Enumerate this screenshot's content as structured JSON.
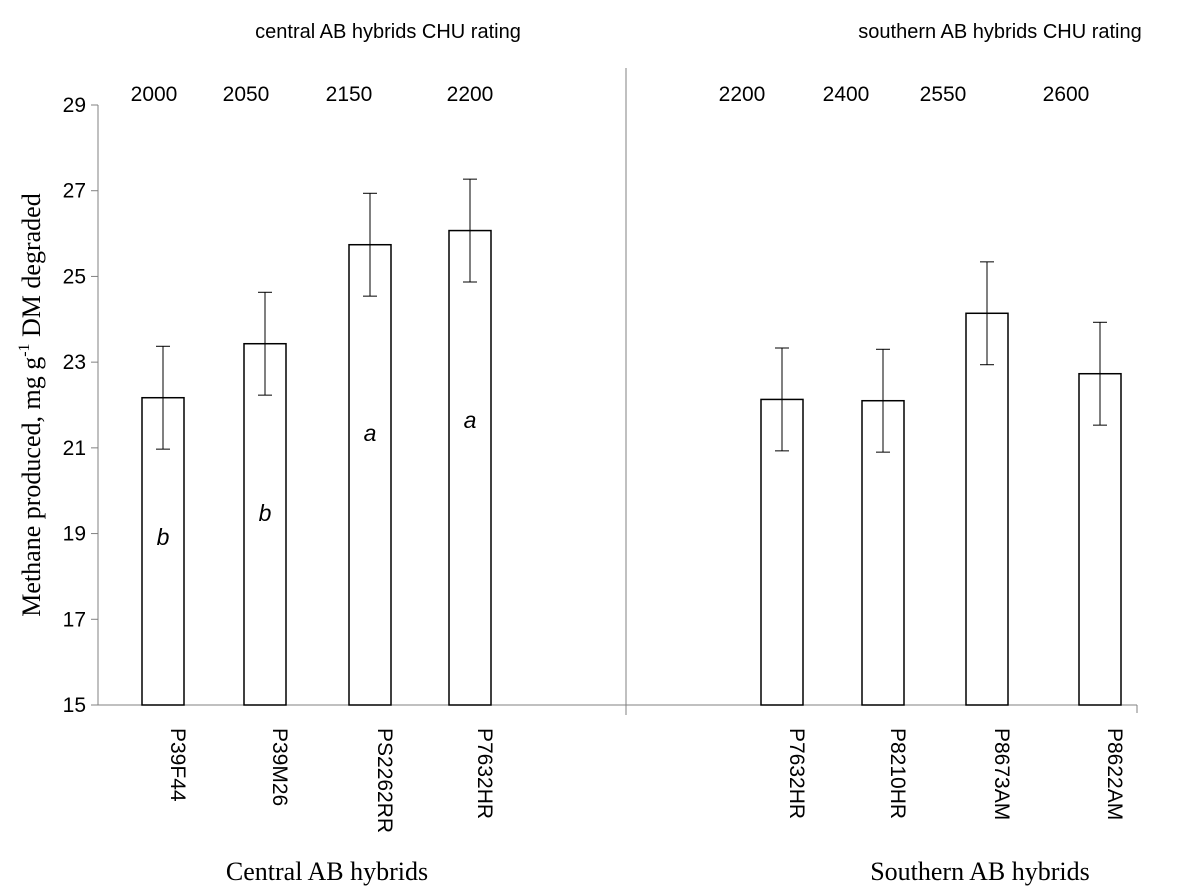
{
  "chart_data": {
    "type": "bar",
    "ylabel_prefix": "Methane produced, mg g",
    "ylabel_sup": "-1",
    "ylabel_suffix": " DM degraded",
    "ylim": [
      15,
      29
    ],
    "yticks": [
      15,
      17,
      19,
      21,
      23,
      25,
      27,
      29
    ],
    "grid": false,
    "colors": {
      "bar_fill": "#ffffff",
      "bar_stroke": "#000000",
      "axis": "#808080",
      "text": "#000000"
    },
    "groups": [
      {
        "group_label": "Central AB hybrids",
        "chu_title": "central AB hybrids CHU rating",
        "categories": [
          "P39F44",
          "P39M26",
          "PS2262RR",
          "P7632HR"
        ],
        "chu": [
          "2000",
          "2050",
          "2150",
          "2200"
        ],
        "values": [
          22.17,
          23.43,
          25.74,
          26.07
        ],
        "errors": [
          1.2,
          1.2,
          1.2,
          1.2
        ],
        "letters": [
          "b",
          "b",
          "a",
          "a"
        ]
      },
      {
        "group_label": "Southern AB hybrids",
        "chu_title": "southern AB hybrids CHU rating",
        "categories": [
          "P7632HR",
          "P8210HR",
          "P8673AM",
          "P8622AM"
        ],
        "chu": [
          "2200",
          "2400",
          "2550",
          "2600"
        ],
        "values": [
          22.13,
          22.1,
          24.14,
          22.73
        ],
        "errors": [
          1.2,
          1.2,
          1.2,
          1.2
        ],
        "letters": [
          "",
          "",
          "",
          ""
        ]
      }
    ]
  }
}
